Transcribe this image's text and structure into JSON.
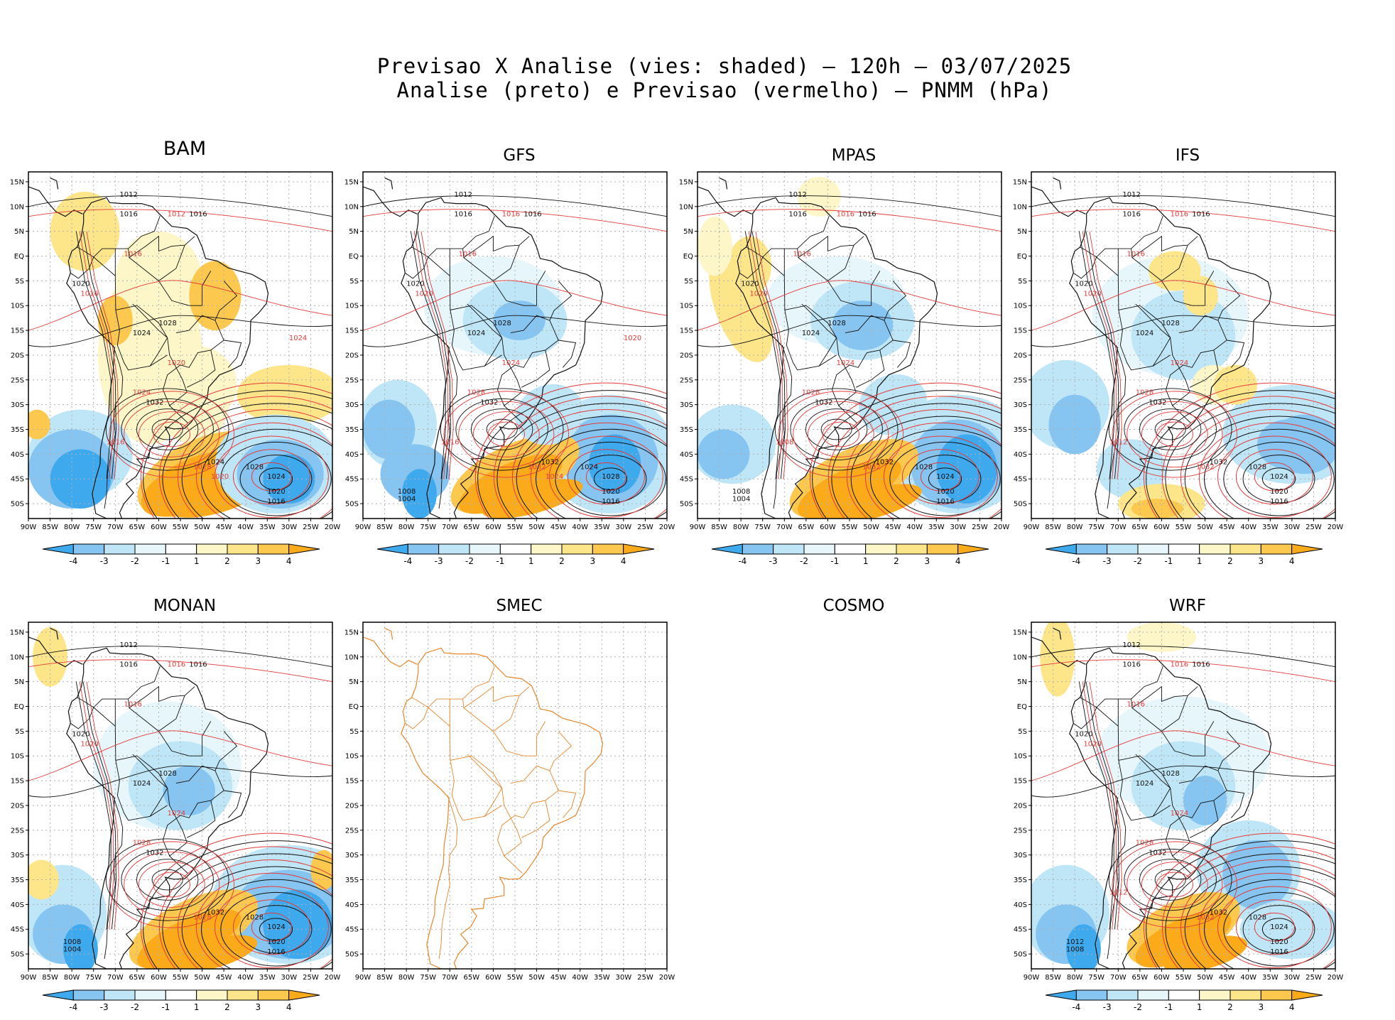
{
  "page": {
    "title_line1": "Previsao X Analise (vies: shaded) – 120h – 03/07/2025",
    "title_line2": "Analise (preto) e Previsao (vermelho) – PNMM (hPa)"
  },
  "colors": {
    "neg4": "#3fa9ee",
    "neg3": "#86c5f2",
    "neg2": "#bfe6f7",
    "neg1": "#e6f6fb",
    "pos1": "#fdf6c8",
    "pos2": "#fde68a",
    "pos3": "#fdc84e",
    "pos4": "#fbab1a",
    "analysis_contour": "#111111",
    "forecast_contour": "#e53b3b",
    "coast_smec": "#e8862a",
    "grid": "#b0b0b0"
  },
  "axes": {
    "lat_labels": [
      "15N",
      "10N",
      "5N",
      "EQ",
      "5S",
      "10S",
      "15S",
      "20S",
      "25S",
      "30S",
      "35S",
      "40S",
      "45S",
      "50S"
    ],
    "lon_labels": [
      "90W",
      "85W",
      "80W",
      "75W",
      "70W",
      "65W",
      "60W",
      "55W",
      "50W",
      "45W",
      "40W",
      "35W",
      "30W",
      "25W",
      "20W"
    ]
  },
  "colorbar": {
    "labels": [
      "-4",
      "-3",
      "-2",
      "-1",
      "1",
      "2",
      "3",
      "4"
    ]
  },
  "chart_data": [
    {
      "type": "heatmap",
      "title": "BAM",
      "variable": "PNMM bias (hPa)",
      "has_map": true,
      "has_colorbar": true,
      "lat_range": [
        -53,
        17
      ],
      "lon_range": [
        -90,
        -20
      ],
      "analysis_contour_labels": [
        "1012",
        "1016",
        "1016",
        "1020",
        "1024",
        "1028",
        "1032",
        "1024",
        "1028",
        "1024",
        "1020",
        "1016"
      ],
      "forecast_contour_labels": [
        "1012",
        "1016",
        "1016",
        "1020",
        "1024",
        "1028",
        "1016",
        "1024",
        "1020"
      ]
    },
    {
      "type": "heatmap",
      "title": "GFS",
      "variable": "PNMM bias (hPa)",
      "has_map": true,
      "has_colorbar": true,
      "lat_range": [
        -53,
        17
      ],
      "lon_range": [
        -90,
        -20
      ],
      "analysis_contour_labels": [
        "1012",
        "1016",
        "1016",
        "1020",
        "1024",
        "1028",
        "1032",
        "1032",
        "1024",
        "1028",
        "1020",
        "1016",
        "1008",
        "1004"
      ],
      "forecast_contour_labels": [
        "1016",
        "1016",
        "1020",
        "1024",
        "1028",
        "1032",
        "1016",
        "1020",
        "1024"
      ]
    },
    {
      "type": "heatmap",
      "title": "MPAS",
      "variable": "PNMM bias (hPa)",
      "has_map": true,
      "has_colorbar": true,
      "lat_range": [
        -53,
        17
      ],
      "lon_range": [
        -90,
        -20
      ],
      "analysis_contour_labels": [
        "1012",
        "1016",
        "1016",
        "1020",
        "1024",
        "1028",
        "1032",
        "1032",
        "1028",
        "1024",
        "1020",
        "1016",
        "1008",
        "1004"
      ],
      "forecast_contour_labels": [
        "1016",
        "1016",
        "1020",
        "1024",
        "1028",
        "1032",
        "1008"
      ]
    },
    {
      "type": "heatmap",
      "title": "IFS",
      "variable": "PNMM bias (hPa)",
      "has_map": true,
      "has_colorbar": true,
      "lat_range": [
        -53,
        17
      ],
      "lon_range": [
        -90,
        -20
      ],
      "analysis_contour_labels": [
        "1012",
        "1016",
        "1016",
        "1020",
        "1024",
        "1028",
        "1032",
        "1032",
        "1028",
        "1024",
        "1020",
        "1016"
      ],
      "forecast_contour_labels": [
        "1016",
        "1016",
        "1020",
        "1024",
        "1028",
        "1032",
        "1012"
      ]
    },
    {
      "type": "heatmap",
      "title": "MONAN",
      "variable": "PNMM bias (hPa)",
      "has_map": true,
      "has_colorbar": true,
      "lat_range": [
        -53,
        17
      ],
      "lon_range": [
        -90,
        -20
      ],
      "analysis_contour_labels": [
        "1012",
        "1016",
        "1016",
        "1020",
        "1024",
        "1028",
        "1032",
        "1032",
        "1028",
        "1024",
        "1020",
        "1016",
        "1008",
        "1004"
      ],
      "forecast_contour_labels": [
        "1016",
        "1016",
        "1020",
        "1024",
        "1028",
        "1028"
      ]
    },
    {
      "type": "heatmap",
      "title": "SMEC",
      "variable": "PNMM bias (hPa)",
      "has_map": true,
      "has_colorbar": false,
      "lat_range": [
        -53,
        17
      ],
      "lon_range": [
        -90,
        -20
      ],
      "analysis_contour_labels": [],
      "forecast_contour_labels": []
    },
    {
      "type": "heatmap",
      "title": "COSMO",
      "variable": "PNMM bias (hPa)",
      "has_map": false,
      "has_colorbar": false,
      "analysis_contour_labels": [],
      "forecast_contour_labels": []
    },
    {
      "type": "heatmap",
      "title": "WRF",
      "variable": "PNMM bias (hPa)",
      "has_map": true,
      "has_colorbar": true,
      "lat_range": [
        -53,
        17
      ],
      "lon_range": [
        -90,
        -20
      ],
      "analysis_contour_labels": [
        "1012",
        "1016",
        "1016",
        "1020",
        "1024",
        "1028",
        "1032",
        "1032",
        "1028",
        "1024",
        "1020",
        "1016",
        "1012",
        "1008"
      ],
      "forecast_contour_labels": [
        "1016",
        "1016",
        "1020",
        "1024",
        "1028",
        "1032",
        "1012"
      ]
    }
  ]
}
